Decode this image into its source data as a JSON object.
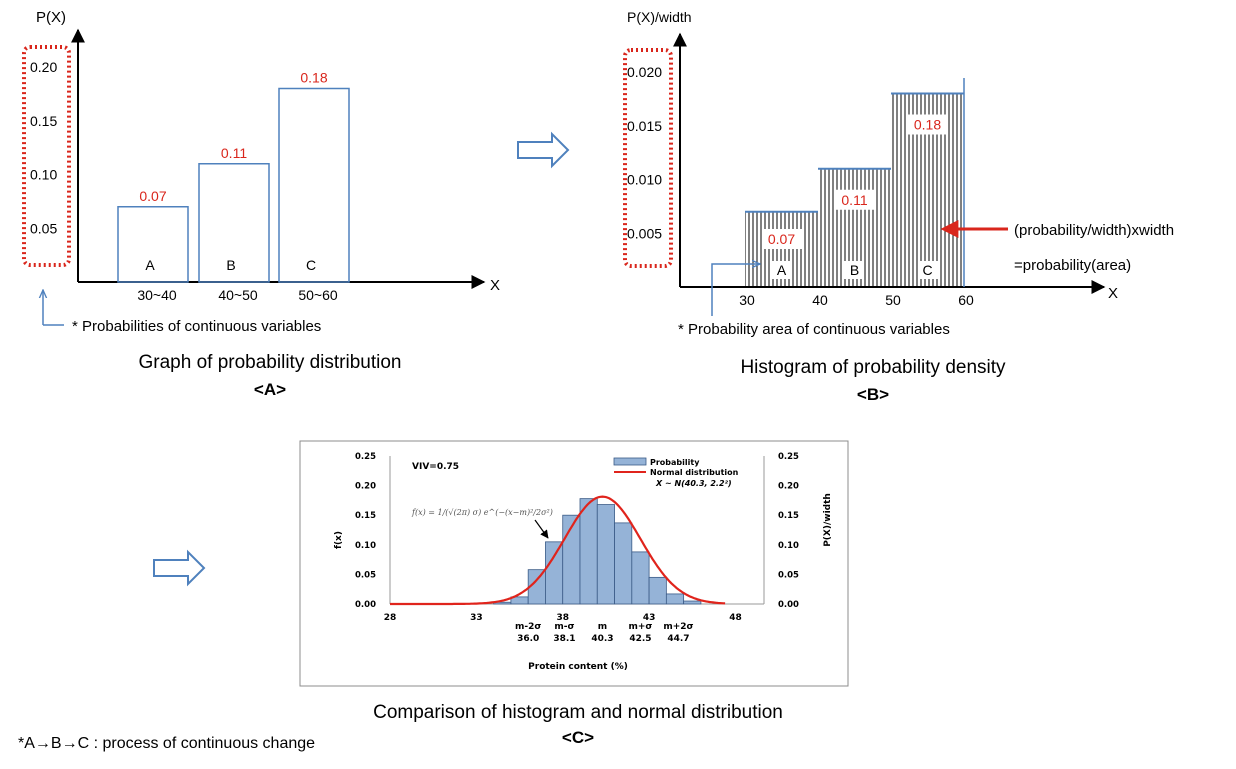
{
  "colors": {
    "axis": "#000000",
    "bar_outline": "#4f81bd",
    "red": "#d9261c",
    "hist_fill": "#95b3d7",
    "hist_stroke": "#3b5b87",
    "curve": "#e0241c"
  },
  "chart_data": [
    {
      "id": "A",
      "type": "bar",
      "ylabel": "P(X)",
      "xlabel": "X",
      "yticks": [
        "0.20",
        "0.15",
        "0.10",
        "0.05"
      ],
      "ytick_values": [
        0.2,
        0.15,
        0.1,
        0.05
      ],
      "ylim": [
        0,
        0.2
      ],
      "categories": [
        "A",
        "B",
        "C"
      ],
      "xtick_labels": [
        "30~40",
        "40~50",
        "50~60"
      ],
      "values": [
        0.07,
        0.11,
        0.18
      ],
      "value_labels": [
        "0.07",
        "0.11",
        "0.18"
      ],
      "note": "* Probabilities of continuous variables",
      "caption": "Graph of probability distribution",
      "tag": "<A>"
    },
    {
      "id": "B",
      "type": "bar",
      "ylabel": "P(X)/width",
      "xlabel": "X",
      "yticks": [
        "0.020",
        "0.015",
        "0.010",
        "0.005"
      ],
      "ytick_values": [
        0.02,
        0.015,
        0.01,
        0.005
      ],
      "ylim": [
        0,
        0.02
      ],
      "x_edges": [
        30,
        40,
        50,
        60
      ],
      "xtick_labels": [
        "30",
        "40",
        "50",
        "60"
      ],
      "categories": [
        "A",
        "B",
        "C"
      ],
      "values": [
        0.007,
        0.011,
        0.018
      ],
      "value_labels": [
        "0.07",
        "0.11",
        "0.18"
      ],
      "annotation_line1": "(probability/width)xwidth",
      "annotation_line2": "=probability(area)",
      "note": "* Probability area of continuous variables",
      "caption": "Histogram of probability density",
      "tag": "<B>"
    },
    {
      "id": "C",
      "type": "bar",
      "title": "",
      "xlabel": "Protein content (%)",
      "ylabel_left": "f(x)",
      "ylabel_right": "P(X)/width",
      "viv": "VIV=0.75",
      "xlim": [
        28,
        50
      ],
      "ylim": [
        0,
        0.25
      ],
      "x_ticks": [
        28,
        33,
        38,
        43,
        48
      ],
      "y_ticks": [
        0,
        0.05,
        0.1,
        0.15,
        0.2,
        0.25
      ],
      "y_tick_labels": [
        "0.00",
        "0.05",
        "0.10",
        "0.15",
        "0.20",
        "0.25"
      ],
      "bins_width": 1,
      "bins_start": [
        34,
        35,
        36,
        37,
        38,
        39,
        40,
        41,
        42,
        43,
        44,
        45
      ],
      "values": [
        0.003,
        0.012,
        0.058,
        0.105,
        0.15,
        0.178,
        0.168,
        0.137,
        0.088,
        0.045,
        0.017,
        0.005
      ],
      "normal_mean": 40.3,
      "normal_sd": 2.2,
      "legend_probability": "Probability",
      "legend_normal": "Normal distribution",
      "legend_formula": "X ~ N(40.3, 2.2²)",
      "sigma_labels": [
        "m-2σ",
        "m-σ",
        "m",
        "m+σ",
        "m+2σ"
      ],
      "sigma_values": [
        "36.0",
        "38.1",
        "40.3",
        "42.5",
        "44.7"
      ],
      "sigma_positions": [
        36.0,
        38.1,
        40.3,
        42.5,
        44.7
      ],
      "formula_text": "f(x) = 1/(√(2π) σ) e^(−(x−m)²/2σ²)",
      "caption": "Comparison of histogram and normal distribution",
      "tag": "<C>"
    }
  ],
  "footnote": "*A→B→C : process of continuous change"
}
